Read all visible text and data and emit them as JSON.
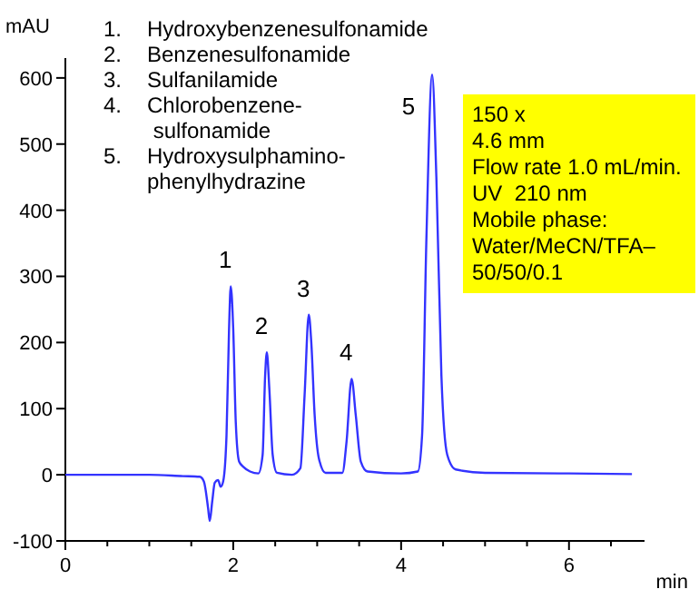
{
  "chart_data": {
    "type": "line",
    "xlabel": "min",
    "ylabel": "mAU",
    "x": [
      0,
      0.5,
      1.0,
      1.4,
      1.6,
      1.65,
      1.7,
      1.72,
      1.75,
      1.78,
      1.82,
      1.85,
      1.88,
      1.92,
      1.95,
      1.97,
      2.0,
      2.03,
      2.07,
      2.12,
      2.2,
      2.3,
      2.35,
      2.38,
      2.4,
      2.43,
      2.47,
      2.52,
      2.7,
      2.8,
      2.85,
      2.9,
      2.93,
      2.97,
      3.02,
      3.1,
      3.3,
      3.35,
      3.41,
      3.46,
      3.52,
      3.6,
      4.0,
      4.2,
      4.25,
      4.3,
      4.37,
      4.42,
      4.48,
      4.55,
      4.65,
      5,
      6,
      6.75
    ],
    "series": [
      {
        "color": "#3333ff",
        "values": [
          0,
          0,
          0,
          -2,
          -3,
          -10,
          -50,
          -70,
          -40,
          -12,
          -8,
          -18,
          -10,
          60,
          220,
          285,
          220,
          80,
          20,
          12,
          5,
          2,
          30,
          150,
          185,
          130,
          30,
          3,
          0,
          10,
          120,
          242,
          200,
          90,
          25,
          3,
          3,
          50,
          145,
          90,
          20,
          5,
          2,
          5,
          60,
          350,
          605,
          450,
          150,
          30,
          8,
          3,
          2,
          1
        ]
      }
    ],
    "xlim": [
      0,
      6.9
    ],
    "ylim": [
      -100,
      630
    ],
    "xticks": [
      0,
      {
        "value": 0.5,
        "label": null
      },
      {
        "value": 1,
        "label": null
      },
      {
        "value": 1.5,
        "label": null
      },
      2,
      {
        "value": 2.5,
        "label": null
      },
      {
        "value": 3,
        "label": null
      },
      {
        "value": 3.5,
        "label": null
      },
      4,
      {
        "value": 4.5,
        "label": null
      },
      {
        "value": 5,
        "label": null
      },
      {
        "value": 5.5,
        "label": null
      },
      6,
      {
        "value": 6.5,
        "label": null
      }
    ],
    "yticks": [
      -100,
      0,
      100,
      200,
      300,
      400,
      500,
      600
    ],
    "grid": false,
    "marker": "none",
    "line_style": "solid",
    "annotations": [
      {
        "text": "1",
        "x": 1.97,
        "y": 285
      },
      {
        "text": "2",
        "x": 2.4,
        "y": 185
      },
      {
        "text": "3",
        "x": 2.9,
        "y": 242
      },
      {
        "text": "4",
        "x": 3.41,
        "y": 145
      },
      {
        "text": "5",
        "x": 4.37,
        "y": 605
      },
      "1. Hydroxybenzenesulfonamide",
      "2. Benzenesulfonamide",
      "3. Sulfanilamide",
      "4. Chlorobenzene-\n sulfonamide",
      "5. Hydroxysulphamino-\nphenylhydrazine",
      "150 x\n4.6 mm\nFlow rate 1.0 mL/min.\nUV  210 nm\nMobile phase:\nWater/MeCN/TFA–\n50/50/0.1"
    ]
  }
}
